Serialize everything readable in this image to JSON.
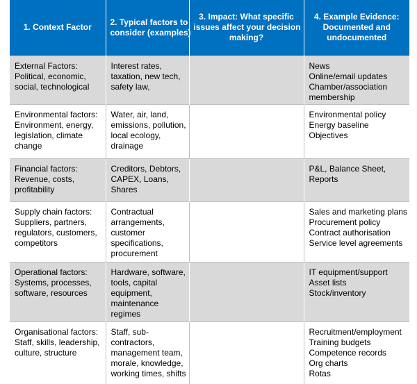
{
  "table": {
    "header": [
      [
        "1. Context Factor"
      ],
      [
        "2. Typical factors to",
        "consider (examples)"
      ],
      [
        "3. Impact: What specific",
        "issues affect your decision",
        "making?"
      ],
      [
        "4. Example Evidence:",
        "Documented and",
        "undocumented"
      ]
    ],
    "rows": [
      [
        [
          "External Factors:",
          "Political, economic,",
          "social, technological"
        ],
        [
          "Interest rates,",
          "taxation, new tech,",
          "safety law,"
        ],
        [],
        [
          "News",
          "Online/email updates",
          "Chamber/association",
          "membership"
        ]
      ],
      [
        [
          "Environmental factors:",
          "Environment, energy,",
          "legislation, climate",
          "change"
        ],
        [
          "Water, air, land,",
          "emissions, pollution,",
          "local ecology,",
          "drainage"
        ],
        [],
        [
          "Environmental policy",
          "Energy baseline",
          "Objectives"
        ]
      ],
      [
        [
          "Financial factors:",
          "Revenue, costs,",
          "profitability"
        ],
        [
          "Creditors, Debtors,",
          "CAPEX, Loans,",
          "Shares"
        ],
        [],
        [
          "P&L, Balance Sheet,",
          "Reports"
        ]
      ],
      [
        [
          "Supply chain factors:",
          "Suppliers, partners,",
          "regulators, customers,",
          "competitors"
        ],
        [
          "Contractual",
          "arrangements,",
          "customer",
          "specifications,",
          "procurement"
        ],
        [],
        [
          "Sales and marketing plans",
          "Procurement policy",
          "Contract authorisation",
          "Service level agreements"
        ]
      ],
      [
        [
          "Operational factors:",
          "Systems, processes,",
          "software, resources"
        ],
        [
          "Hardware, software,",
          "tools, capital",
          "equipment,",
          "maintenance",
          "regimes"
        ],
        [],
        [
          "IT equipment/support",
          "Asset lists",
          "Stock/inventory"
        ]
      ],
      [
        [
          "Organisational factors:",
          "Staff, skills, leadership,",
          "culture, structure"
        ],
        [
          "Staff, sub-",
          "contractors,",
          "management team,",
          "morale, knowledge,",
          "working times, shifts"
        ],
        [],
        [
          "Recruitment/employment",
          "Training budgets",
          "Competence records",
          "Org charts",
          "Rotas"
        ]
      ]
    ]
  }
}
